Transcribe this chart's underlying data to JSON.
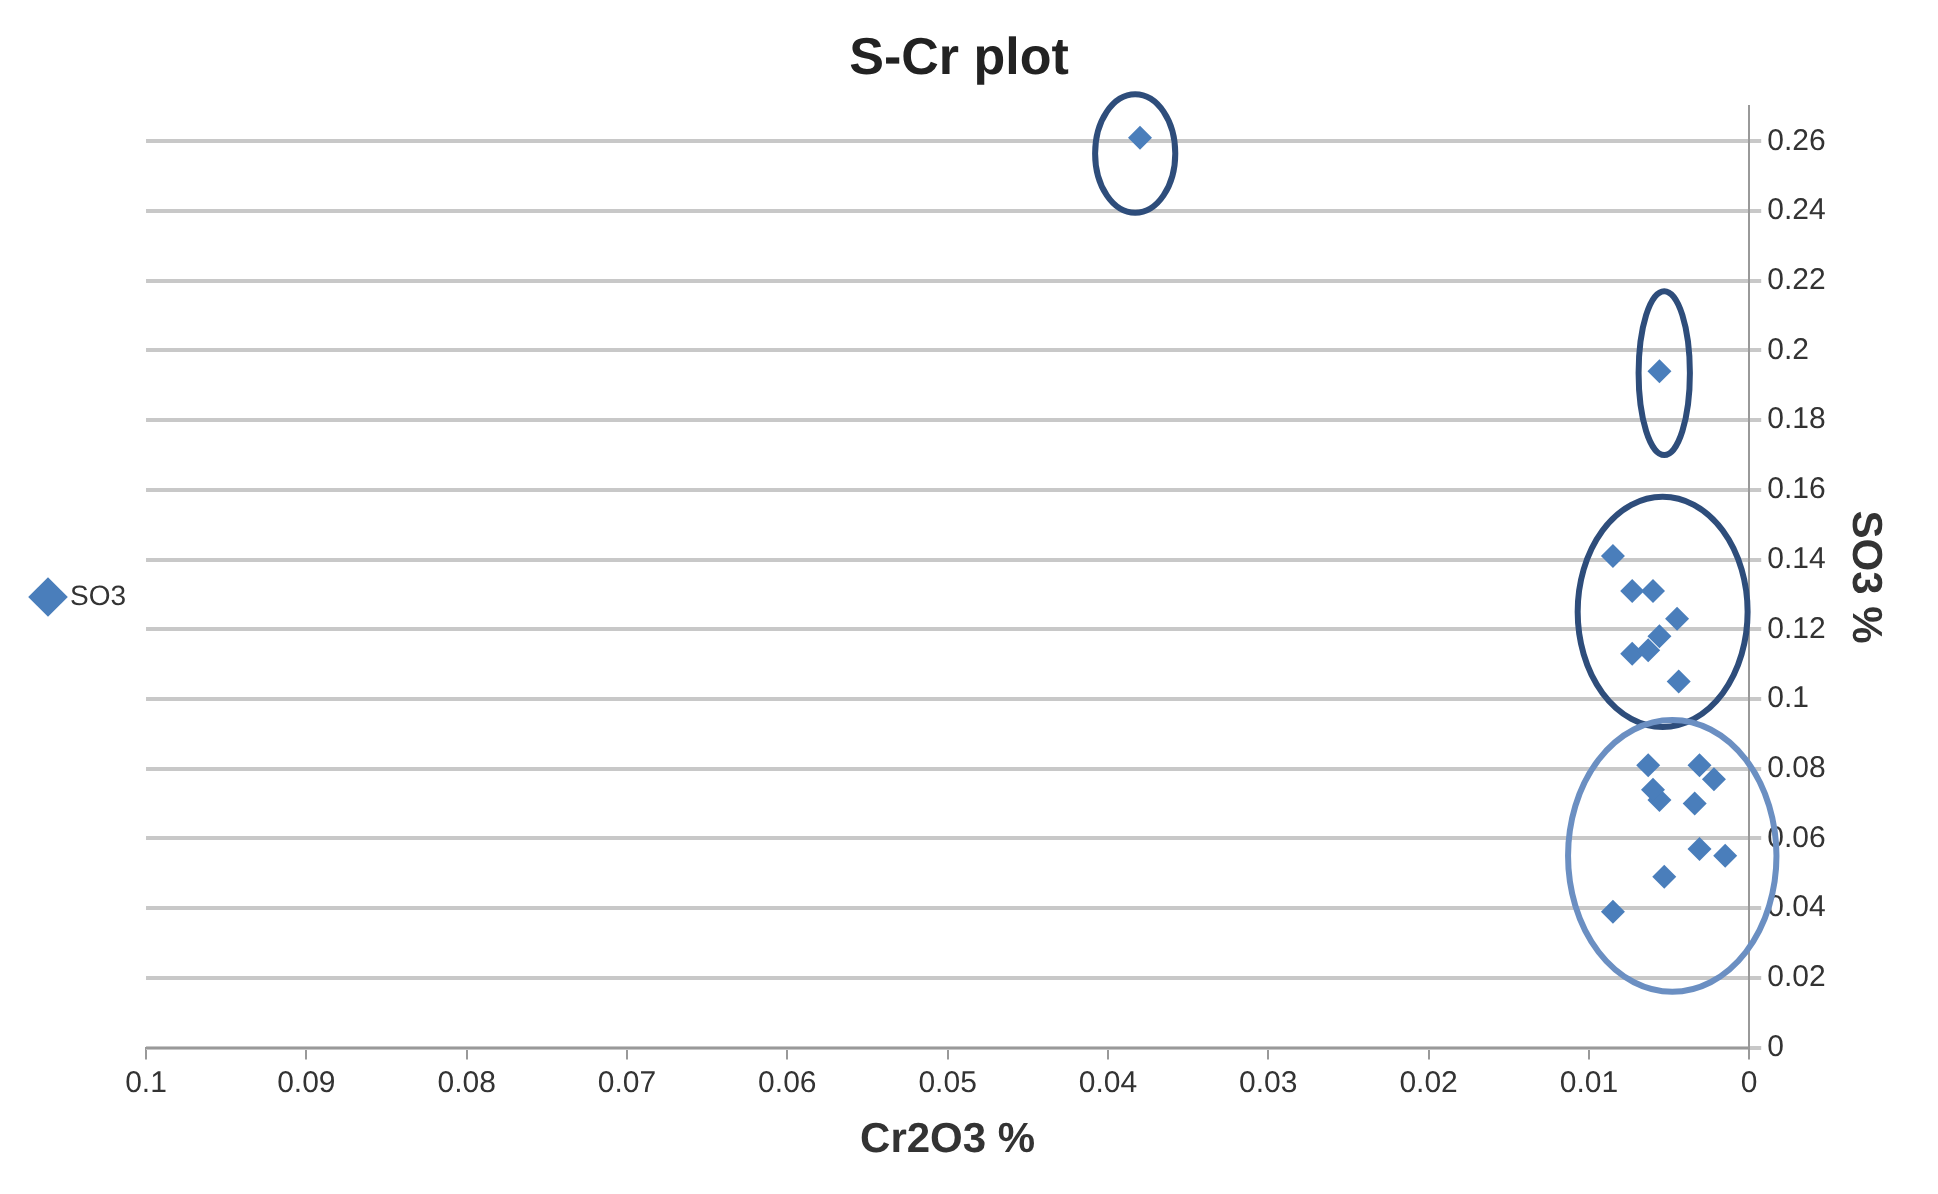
{
  "chart_data": {
    "type": "scatter",
    "title": "S-Cr plot",
    "xlabel": "Cr2O3 %",
    "ylabel": "SO3 %",
    "xlim": [
      0.1,
      0
    ],
    "xticks": [
      0.1,
      0.09,
      0.08,
      0.07,
      0.06,
      0.05,
      0.04,
      0.03,
      0.02,
      0.01,
      0
    ],
    "ylim": [
      0,
      0.27
    ],
    "yticks": [
      0,
      0.02,
      0.04,
      0.06,
      0.08,
      0.1,
      0.12,
      0.14,
      0.16,
      0.18,
      0.2,
      0.22,
      0.24,
      0.26
    ],
    "grid": "y",
    "legend": "left",
    "marker": "diamond",
    "series": [
      {
        "name": "SO3",
        "color": "#4a7ebb",
        "x": [
          0.038,
          0.0056,
          0.0085,
          0.0073,
          0.006,
          0.0045,
          0.0056,
          0.0073,
          0.0063,
          0.0044,
          0.0063,
          0.0031,
          0.0022,
          0.0056,
          0.0034,
          0.006,
          0.0031,
          0.0015,
          0.0053,
          0.0085
        ],
        "values": [
          0.261,
          0.194,
          0.141,
          0.131,
          0.131,
          0.123,
          0.118,
          0.113,
          0.114,
          0.105,
          0.081,
          0.081,
          0.077,
          0.071,
          0.07,
          0.074,
          0.057,
          0.055,
          0.049,
          0.039
        ]
      }
    ]
  }
}
